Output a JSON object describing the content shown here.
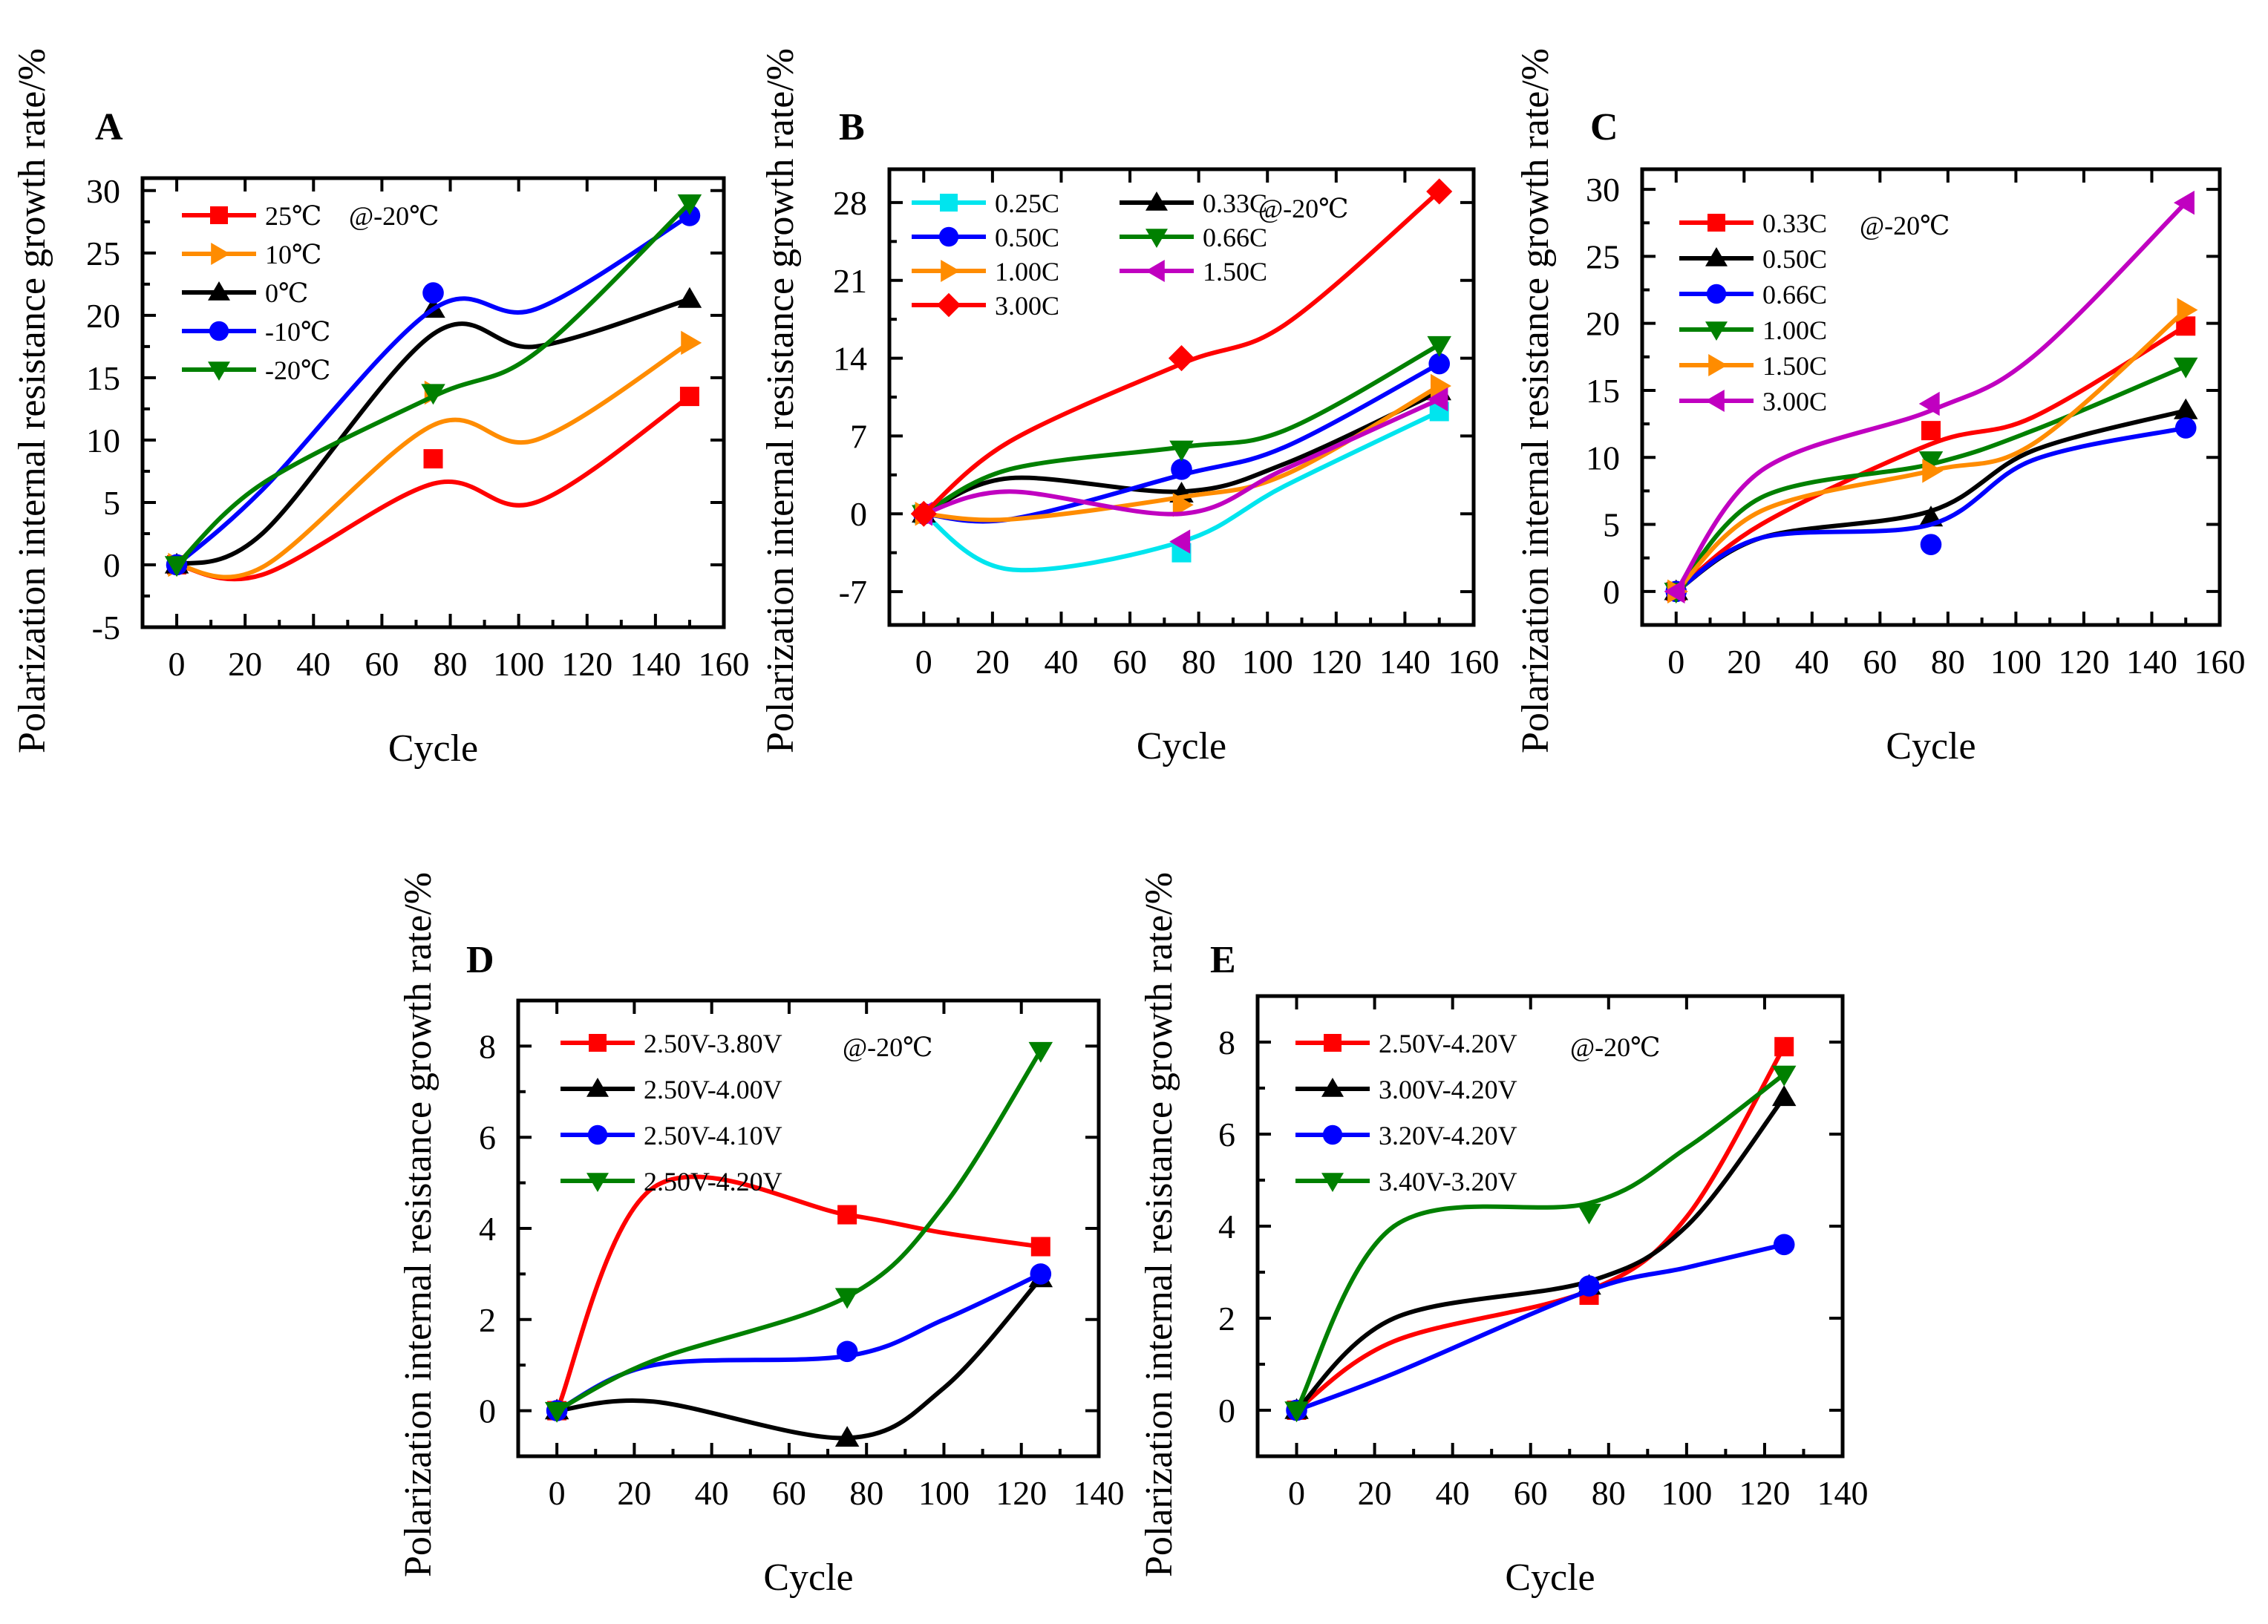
{
  "chart_data": [
    {
      "panel": "A",
      "type": "line",
      "condition": "@-20℃",
      "xlabel": "Cycle",
      "ylabel": "Polarization internal resistance growth rate/%",
      "xlim": [
        -10,
        160
      ],
      "ylim": [
        -5,
        31
      ],
      "xticks": [
        0,
        20,
        40,
        60,
        80,
        100,
        120,
        140,
        160
      ],
      "yticks": [
        -5,
        0,
        5,
        10,
        15,
        20,
        25,
        30
      ],
      "series": [
        {
          "name": "25℃",
          "color": "#ff0000",
          "marker": "square",
          "x": [
            0,
            75,
            150
          ],
          "y": [
            0,
            8.5,
            13.5
          ],
          "curve_y": [
            0,
            -0.8,
            6.5,
            5,
            13.5
          ]
        },
        {
          "name": "10℃",
          "color": "#ff8c00",
          "marker": "triangle-right",
          "x": [
            0,
            75,
            150
          ],
          "y": [
            0,
            13.8,
            17.8
          ],
          "curve_y": [
            0,
            -0.2,
            11.2,
            10,
            17.8
          ]
        },
        {
          "name": "0℃",
          "color": "#000000",
          "marker": "triangle-up",
          "x": [
            0,
            75,
            150
          ],
          "y": [
            0,
            20.5,
            21.3
          ],
          "curve_y": [
            0,
            2.5,
            18.5,
            17.5,
            21.3
          ]
        },
        {
          "name": "-10℃",
          "color": "#0000ff",
          "marker": "circle",
          "x": [
            0,
            75,
            150
          ],
          "y": [
            0,
            21.8,
            28
          ],
          "curve_y": [
            0,
            6,
            20.5,
            20.5,
            28
          ]
        },
        {
          "name": "-20℃",
          "color": "#008000",
          "marker": "triangle-down",
          "x": [
            0,
            75,
            150
          ],
          "y": [
            0,
            13.8,
            29
          ],
          "curve_y": [
            0,
            6.5,
            13.5,
            17,
            29
          ]
        }
      ]
    },
    {
      "panel": "B",
      "type": "line",
      "condition": "@-20℃",
      "xlabel": "Cycle",
      "ylabel": "Polarization internal resistance growth rate/%",
      "xlim": [
        -10,
        160
      ],
      "ylim": [
        -10,
        31
      ],
      "xticks": [
        0,
        20,
        40,
        60,
        80,
        100,
        120,
        140,
        160
      ],
      "yticks": [
        -7,
        0,
        7,
        14,
        21,
        28
      ],
      "series": [
        {
          "name": "0.25C",
          "color": "#00e5ee",
          "marker": "square",
          "x": [
            0,
            75,
            150
          ],
          "y": [
            0,
            -3.5,
            9.2
          ],
          "curve_y": [
            0,
            -5,
            -2.5,
            2.5,
            9.2
          ]
        },
        {
          "name": "0.33C",
          "color": "#000000",
          "marker": "triangle-up",
          "x": [
            0,
            75,
            150
          ],
          "y": [
            0,
            1.8,
            11
          ],
          "curve_y": [
            0,
            3.2,
            2,
            4.5,
            11
          ]
        },
        {
          "name": "0.50C",
          "color": "#0000ff",
          "marker": "circle",
          "x": [
            0,
            75,
            150
          ],
          "y": [
            0,
            4,
            13.5
          ],
          "curve_y": [
            0,
            -0.5,
            3.5,
            6,
            13.5
          ]
        },
        {
          "name": "0.66C",
          "color": "#008000",
          "marker": "triangle-down",
          "x": [
            0,
            75,
            150
          ],
          "y": [
            0,
            5.8,
            15.2
          ],
          "curve_y": [
            0,
            4,
            6,
            7.5,
            15.2
          ]
        },
        {
          "name": "1.00C",
          "color": "#ff8c00",
          "marker": "triangle-right",
          "x": [
            0,
            75,
            150
          ],
          "y": [
            0,
            0.8,
            11.5
          ],
          "curve_y": [
            0,
            -0.5,
            1.5,
            3.5,
            11.5
          ]
        },
        {
          "name": "1.50C",
          "color": "#c000c0",
          "marker": "triangle-left",
          "x": [
            0,
            75,
            150
          ],
          "y": [
            0,
            -2.5,
            10.3
          ],
          "curve_y": [
            0,
            2,
            0,
            4,
            10.3
          ]
        },
        {
          "name": "3.00C",
          "color": "#ff0000",
          "marker": "diamond",
          "x": [
            0,
            75,
            150
          ],
          "y": [
            0,
            14,
            29
          ],
          "curve_y": [
            0,
            6.5,
            13.5,
            17,
            29
          ]
        }
      ]
    },
    {
      "panel": "C",
      "type": "line",
      "condition": "@-20℃",
      "xlabel": "Cycle",
      "ylabel": "Polarization internal resistance growth rate/%",
      "xlim": [
        -10,
        160
      ],
      "ylim": [
        -2.5,
        31.5
      ],
      "xticks": [
        0,
        20,
        40,
        60,
        80,
        100,
        120,
        140,
        160
      ],
      "yticks": [
        0,
        5,
        10,
        15,
        20,
        25,
        30
      ],
      "series": [
        {
          "name": "0.33C",
          "color": "#ff0000",
          "marker": "square",
          "x": [
            0,
            75,
            150
          ],
          "y": [
            0,
            12,
            19.8
          ],
          "curve_y": [
            0,
            5,
            11,
            13,
            19.8
          ]
        },
        {
          "name": "0.50C",
          "color": "#000000",
          "marker": "triangle-up",
          "x": [
            0,
            75,
            150
          ],
          "y": [
            0,
            5.5,
            13.5
          ],
          "curve_y": [
            0,
            4,
            6,
            10.5,
            13.5
          ]
        },
        {
          "name": "0.66C",
          "color": "#0000ff",
          "marker": "circle",
          "x": [
            0,
            75,
            150
          ],
          "y": [
            0,
            3.5,
            12.2
          ],
          "curve_y": [
            0,
            4,
            5,
            9.8,
            12.2
          ]
        },
        {
          "name": "1.00C",
          "color": "#008000",
          "marker": "triangle-down",
          "x": [
            0,
            75,
            150
          ],
          "y": [
            0,
            9.8,
            16.8
          ],
          "curve_y": [
            0,
            7,
            9.5,
            12,
            16.8
          ]
        },
        {
          "name": "1.50C",
          "color": "#ff8c00",
          "marker": "triangle-right",
          "x": [
            0,
            75,
            150
          ],
          "y": [
            0,
            9,
            21
          ],
          "curve_y": [
            0,
            6,
            9,
            11,
            21
          ]
        },
        {
          "name": "3.00C",
          "color": "#c000c0",
          "marker": "triangle-left",
          "x": [
            0,
            75,
            150
          ],
          "y": [
            0,
            14,
            29
          ],
          "curve_y": [
            0,
            9,
            13.5,
            17.5,
            29
          ]
        }
      ]
    },
    {
      "panel": "D",
      "type": "line",
      "condition": "@-20℃",
      "xlabel": "Cycle",
      "ylabel": "Polarization internal resistance growth rate/%",
      "xlim": [
        -10,
        140
      ],
      "ylim": [
        -1,
        9
      ],
      "xticks": [
        0,
        20,
        40,
        60,
        80,
        100,
        120,
        140
      ],
      "yticks": [
        0,
        2,
        4,
        6,
        8
      ],
      "series": [
        {
          "name": "2.50V-3.80V",
          "color": "#ff0000",
          "marker": "square",
          "x": [
            0,
            75,
            125
          ],
          "y": [
            0,
            4.3,
            3.6
          ],
          "curve_y": [
            0,
            4.9,
            4.3,
            3.9,
            3.6
          ]
        },
        {
          "name": "2.50V-4.00V",
          "color": "#000000",
          "marker": "triangle-up",
          "x": [
            0,
            75,
            125
          ],
          "y": [
            0,
            -0.6,
            2.9
          ],
          "curve_y": [
            0,
            0.2,
            -0.6,
            0.5,
            2.9
          ]
        },
        {
          "name": "2.50V-4.10V",
          "color": "#0000ff",
          "marker": "circle",
          "x": [
            0,
            75,
            125
          ],
          "y": [
            0,
            1.3,
            3
          ],
          "curve_y": [
            0,
            1,
            1.2,
            2,
            3
          ]
        },
        {
          "name": "2.50V-4.20V",
          "color": "#008000",
          "marker": "triangle-down",
          "x": [
            0,
            75,
            125
          ],
          "y": [
            0,
            2.5,
            7.9
          ],
          "curve_y": [
            0,
            1.1,
            2.5,
            4.5,
            7.9
          ]
        }
      ]
    },
    {
      "panel": "E",
      "type": "line",
      "condition": "@-20℃",
      "xlabel": "Cycle",
      "ylabel": "Polarization internal resistance growth rate/%",
      "xlim": [
        -10,
        140
      ],
      "ylim": [
        -1,
        9
      ],
      "xticks": [
        0,
        20,
        40,
        60,
        80,
        100,
        120,
        140
      ],
      "yticks": [
        0,
        2,
        4,
        6,
        8
      ],
      "series": [
        {
          "name": "2.50V-4.20V",
          "color": "#ff0000",
          "marker": "square",
          "x": [
            0,
            75,
            125
          ],
          "y": [
            0,
            2.5,
            7.9
          ],
          "curve_y": [
            0,
            1.5,
            2.6,
            4.2,
            7.9
          ]
        },
        {
          "name": "3.00V-4.20V",
          "color": "#000000",
          "marker": "triangle-up",
          "x": [
            0,
            75,
            125
          ],
          "y": [
            0,
            2.7,
            6.8
          ],
          "curve_y": [
            0,
            2,
            2.8,
            4,
            6.8
          ]
        },
        {
          "name": "3.20V-4.20V",
          "color": "#0000ff",
          "marker": "circle",
          "x": [
            0,
            75,
            125
          ],
          "y": [
            0,
            2.7,
            3.6
          ],
          "curve_y": [
            0,
            0.8,
            2.6,
            3.1,
            3.6
          ]
        },
        {
          "name": "3.40V-3.20V",
          "color": "#008000",
          "marker": "triangle-down",
          "x": [
            0,
            75,
            125
          ],
          "y": [
            0,
            4.3,
            7.3
          ],
          "curve_y": [
            0,
            4,
            4.5,
            5.7,
            7.3
          ]
        }
      ]
    }
  ]
}
